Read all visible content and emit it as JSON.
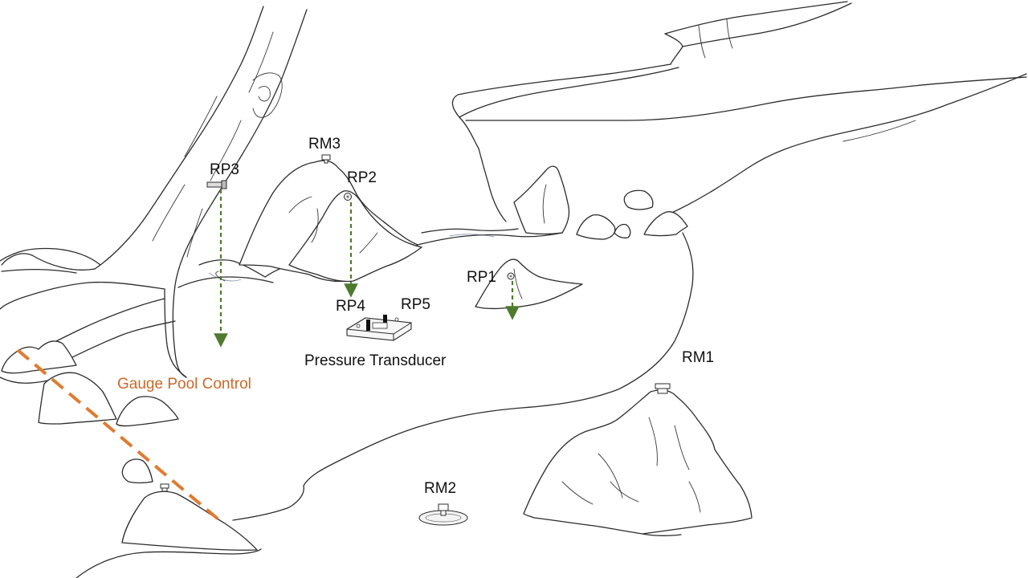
{
  "labels": {
    "rm1": "RM1",
    "rm2": "RM2",
    "rm3": "RM3",
    "rp1": "RP1",
    "rp2": "RP2",
    "rp3": "RP3",
    "rp4": "RP4",
    "rp5": "RP5",
    "pressure_transducer": "Pressure Transducer",
    "gauge_pool_control": "Gauge Pool Control"
  },
  "colors": {
    "ink": "#2b2b2b",
    "drop_line": "#4e7a2e",
    "control_line": "#e07b30",
    "control_text": "#c8692a",
    "water": "#5a6e8c"
  },
  "icons": {
    "benchmark": "survey-monument-icon",
    "reference_point": "reference-bolt-icon",
    "transducer": "pressure-transducer-icon",
    "drop_arrow": "arrow-down-icon"
  }
}
